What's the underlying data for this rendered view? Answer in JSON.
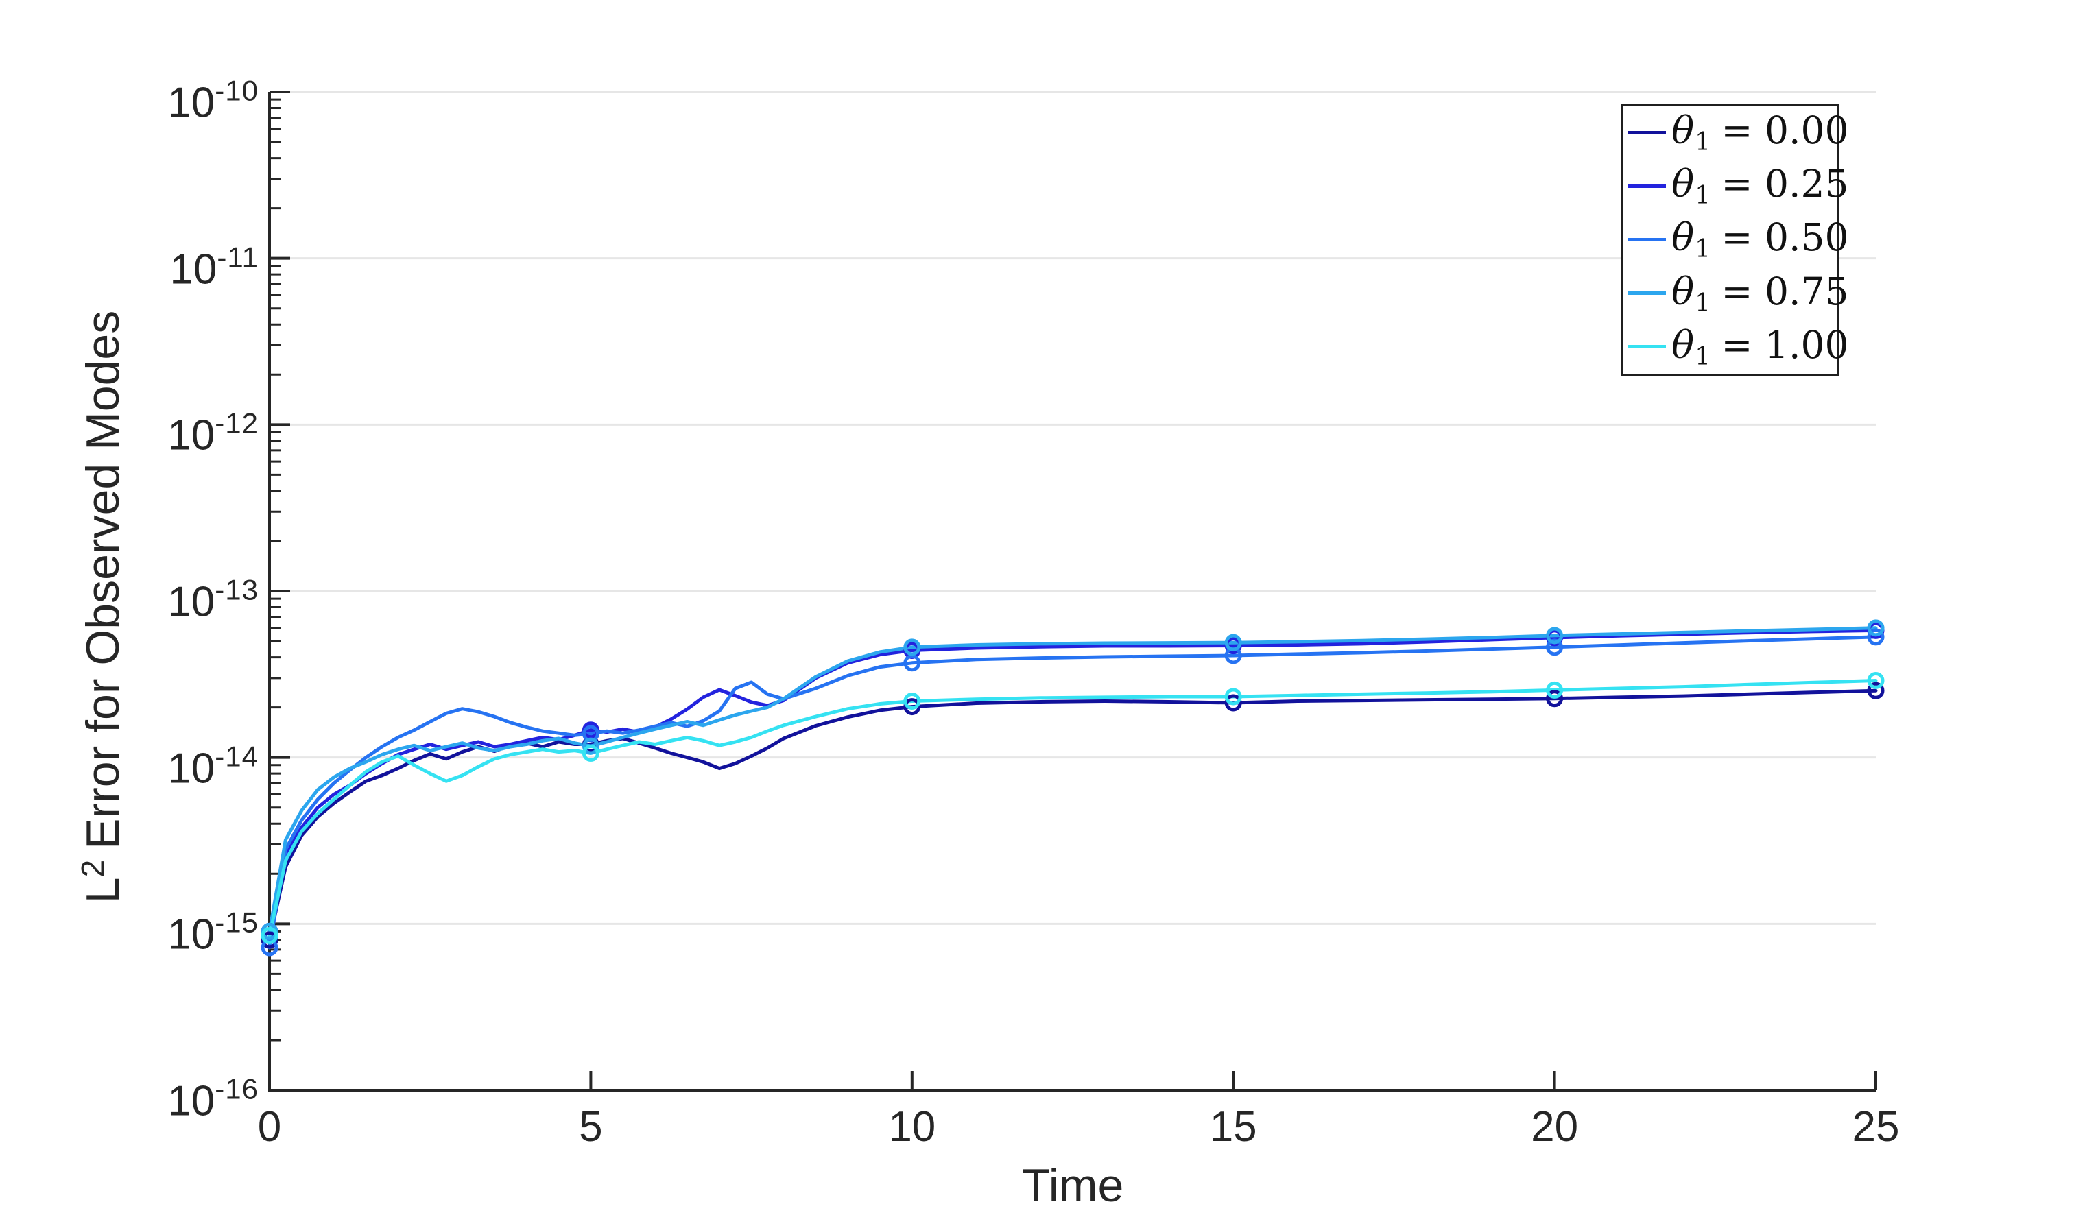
{
  "background": "#FFFFFF",
  "grid_color": "#E6E6E6",
  "axis_color": "#262626",
  "chart_data": {
    "type": "line",
    "title": "",
    "xlabel": "Time",
    "ylabel_base": "L",
    "ylabel_sup": "2",
    "ylabel_rest": "Error for Observed Modes",
    "xlim": [
      0,
      25
    ],
    "ylim": [
      1e-16,
      1e-10
    ],
    "yscale": "log",
    "x_ticks": [
      0,
      5,
      10,
      15,
      20,
      25
    ],
    "y_tick_base": "10",
    "y_tick_exponents": [
      -10,
      -11,
      -12,
      -13,
      -14,
      -15,
      -16
    ],
    "grid": "horizontal-only",
    "legend_position": "top-right-inside",
    "legend": {
      "theta": "θ",
      "sub": "1",
      "eq": "="
    },
    "marker_times": [
      0,
      5,
      10,
      15,
      20,
      25
    ],
    "marker_style": "open-circle",
    "value_unit": 1e-15,
    "series": [
      {
        "name": "theta1-0.00",
        "legend_value": "0.00",
        "color": "#12129B",
        "points": [
          [
            0,
            0.8
          ],
          [
            0.25,
            2.2
          ],
          [
            0.5,
            3.4
          ],
          [
            0.75,
            4.4
          ],
          [
            1,
            5.3
          ],
          [
            1.25,
            6.2
          ],
          [
            1.5,
            7.2
          ],
          [
            1.75,
            7.8
          ],
          [
            2,
            8.6
          ],
          [
            2.25,
            9.6
          ],
          [
            2.5,
            10.5
          ],
          [
            2.75,
            9.8
          ],
          [
            3,
            10.8
          ],
          [
            3.25,
            11.6
          ],
          [
            3.5,
            10.9
          ],
          [
            3.75,
            11.8
          ],
          [
            4,
            12.2
          ],
          [
            4.25,
            11.6
          ],
          [
            4.5,
            12.4
          ],
          [
            4.75,
            12.0
          ],
          [
            5,
            12.0
          ],
          [
            5.25,
            12.6
          ],
          [
            5.5,
            13.0
          ],
          [
            5.75,
            12.2
          ],
          [
            6,
            11.4
          ],
          [
            6.25,
            10.6
          ],
          [
            6.5,
            10.0
          ],
          [
            6.75,
            9.4
          ],
          [
            7,
            8.6
          ],
          [
            7.25,
            9.2
          ],
          [
            7.5,
            10.2
          ],
          [
            7.75,
            11.4
          ],
          [
            8,
            13.0
          ],
          [
            8.5,
            15.5
          ],
          [
            9,
            17.5
          ],
          [
            9.5,
            19.2
          ],
          [
            10,
            20.2
          ],
          [
            11,
            21.2
          ],
          [
            12,
            21.6
          ],
          [
            13,
            21.8
          ],
          [
            14,
            21.6
          ],
          [
            15,
            21.3
          ],
          [
            16,
            21.8
          ],
          [
            17,
            22.0
          ],
          [
            18,
            22.2
          ],
          [
            19,
            22.4
          ],
          [
            20,
            22.6
          ],
          [
            21,
            23.0
          ],
          [
            22,
            23.4
          ],
          [
            23,
            24.0
          ],
          [
            24,
            24.6
          ],
          [
            25,
            25.2
          ]
        ]
      },
      {
        "name": "theta1-0.25",
        "legend_value": "0.25",
        "color": "#2323DE",
        "points": [
          [
            0,
            0.9
          ],
          [
            0.25,
            2.6
          ],
          [
            0.5,
            3.8
          ],
          [
            0.75,
            5.0
          ],
          [
            1,
            6.0
          ],
          [
            1.25,
            6.8
          ],
          [
            1.5,
            8.0
          ],
          [
            1.75,
            9.2
          ],
          [
            2,
            10.4
          ],
          [
            2.25,
            11.2
          ],
          [
            2.5,
            12.0
          ],
          [
            2.75,
            11.2
          ],
          [
            3,
            11.8
          ],
          [
            3.25,
            12.4
          ],
          [
            3.5,
            11.6
          ],
          [
            3.75,
            12.0
          ],
          [
            4,
            12.6
          ],
          [
            4.25,
            13.2
          ],
          [
            4.5,
            12.8
          ],
          [
            4.75,
            13.6
          ],
          [
            5,
            14.6
          ],
          [
            5.25,
            14.2
          ],
          [
            5.5,
            14.8
          ],
          [
            5.75,
            14.2
          ],
          [
            6,
            15.2
          ],
          [
            6.25,
            17.0
          ],
          [
            6.5,
            19.5
          ],
          [
            6.75,
            23.0
          ],
          [
            7,
            25.5
          ],
          [
            7.25,
            23.5
          ],
          [
            7.5,
            21.5
          ],
          [
            7.75,
            20.5
          ],
          [
            8,
            22.0
          ],
          [
            8.5,
            30.0
          ],
          [
            9,
            37.0
          ],
          [
            9.5,
            41.5
          ],
          [
            10,
            44.0
          ],
          [
            11,
            45.5
          ],
          [
            12,
            46.3
          ],
          [
            13,
            46.8
          ],
          [
            14,
            46.8
          ],
          [
            15,
            47.0
          ],
          [
            16,
            47.5
          ],
          [
            17,
            48.2
          ],
          [
            18,
            49.5
          ],
          [
            19,
            51.0
          ],
          [
            20,
            52.5
          ],
          [
            21,
            53.8
          ],
          [
            22,
            55.0
          ],
          [
            23,
            56.2
          ],
          [
            24,
            57.2
          ],
          [
            25,
            58.0
          ]
        ]
      },
      {
        "name": "theta1-0.50",
        "legend_value": "0.50",
        "color": "#2673F2",
        "points": [
          [
            0,
            0.72
          ],
          [
            0.25,
            2.8
          ],
          [
            0.5,
            4.2
          ],
          [
            0.75,
            5.6
          ],
          [
            1,
            7.0
          ],
          [
            1.25,
            8.4
          ],
          [
            1.5,
            10.0
          ],
          [
            1.75,
            11.6
          ],
          [
            2,
            13.2
          ],
          [
            2.25,
            14.6
          ],
          [
            2.5,
            16.4
          ],
          [
            2.75,
            18.4
          ],
          [
            3,
            19.6
          ],
          [
            3.25,
            18.8
          ],
          [
            3.5,
            17.6
          ],
          [
            3.75,
            16.2
          ],
          [
            4,
            15.2
          ],
          [
            4.25,
            14.4
          ],
          [
            4.5,
            14.0
          ],
          [
            4.75,
            13.6
          ],
          [
            5,
            13.9
          ],
          [
            5.25,
            14.4
          ],
          [
            5.5,
            14.0
          ],
          [
            5.75,
            14.6
          ],
          [
            6,
            15.4
          ],
          [
            6.25,
            16.2
          ],
          [
            6.5,
            15.4
          ],
          [
            6.75,
            16.6
          ],
          [
            7,
            19.0
          ],
          [
            7.25,
            26.0
          ],
          [
            7.5,
            28.3
          ],
          [
            7.75,
            24.0
          ],
          [
            8,
            22.5
          ],
          [
            8.5,
            26.0
          ],
          [
            9,
            31.0
          ],
          [
            9.5,
            35.0
          ],
          [
            10,
            37.0
          ],
          [
            11,
            38.8
          ],
          [
            12,
            39.6
          ],
          [
            13,
            40.2
          ],
          [
            14,
            40.6
          ],
          [
            15,
            41.0
          ],
          [
            16,
            41.8
          ],
          [
            17,
            42.6
          ],
          [
            18,
            43.6
          ],
          [
            19,
            44.8
          ],
          [
            20,
            46.0
          ],
          [
            21,
            47.4
          ],
          [
            22,
            48.8
          ],
          [
            23,
            50.2
          ],
          [
            24,
            51.6
          ],
          [
            25,
            53.0
          ]
        ]
      },
      {
        "name": "theta1-0.75",
        "legend_value": "0.75",
        "color": "#2CA6EE",
        "points": [
          [
            0,
            0.9
          ],
          [
            0.25,
            3.2
          ],
          [
            0.5,
            4.8
          ],
          [
            0.75,
            6.4
          ],
          [
            1,
            7.6
          ],
          [
            1.25,
            8.6
          ],
          [
            1.5,
            9.4
          ],
          [
            1.75,
            10.4
          ],
          [
            2,
            11.2
          ],
          [
            2.25,
            11.8
          ],
          [
            2.5,
            11.0
          ],
          [
            2.75,
            11.6
          ],
          [
            3,
            12.2
          ],
          [
            3.25,
            11.4
          ],
          [
            3.5,
            11.0
          ],
          [
            3.75,
            11.6
          ],
          [
            4,
            12.0
          ],
          [
            4.25,
            12.6
          ],
          [
            4.5,
            13.0
          ],
          [
            4.75,
            12.2
          ],
          [
            5,
            11.7
          ],
          [
            5.25,
            12.4
          ],
          [
            5.5,
            13.2
          ],
          [
            5.75,
            14.0
          ],
          [
            6,
            14.8
          ],
          [
            6.25,
            15.6
          ],
          [
            6.5,
            16.4
          ],
          [
            6.75,
            15.6
          ],
          [
            7,
            16.8
          ],
          [
            7.25,
            18.0
          ],
          [
            7.5,
            19.0
          ],
          [
            7.75,
            20.0
          ],
          [
            8,
            22.5
          ],
          [
            8.5,
            30.5
          ],
          [
            9,
            38.0
          ],
          [
            9.5,
            43.0
          ],
          [
            10,
            46.0
          ],
          [
            11,
            47.5
          ],
          [
            12,
            48.2
          ],
          [
            13,
            48.6
          ],
          [
            14,
            48.8
          ],
          [
            15,
            49.0
          ],
          [
            16,
            49.6
          ],
          [
            17,
            50.4
          ],
          [
            18,
            51.4
          ],
          [
            19,
            52.6
          ],
          [
            20,
            54.0
          ],
          [
            21,
            55.2
          ],
          [
            22,
            56.4
          ],
          [
            23,
            57.6
          ],
          [
            24,
            58.8
          ],
          [
            25,
            60.0
          ]
        ]
      },
      {
        "name": "theta1-1.00",
        "legend_value": "1.00",
        "color": "#35E2F2",
        "points": [
          [
            0,
            0.85
          ],
          [
            0.25,
            2.4
          ],
          [
            0.5,
            3.6
          ],
          [
            0.75,
            4.6
          ],
          [
            1,
            5.6
          ],
          [
            1.25,
            6.8
          ],
          [
            1.5,
            8.2
          ],
          [
            1.75,
            9.4
          ],
          [
            2,
            10.2
          ],
          [
            2.25,
            9.0
          ],
          [
            2.5,
            8.0
          ],
          [
            2.75,
            7.2
          ],
          [
            3,
            7.8
          ],
          [
            3.25,
            8.8
          ],
          [
            3.5,
            9.8
          ],
          [
            3.75,
            10.4
          ],
          [
            4,
            10.8
          ],
          [
            4.25,
            11.2
          ],
          [
            4.5,
            10.8
          ],
          [
            4.75,
            11.0
          ],
          [
            5,
            10.6
          ],
          [
            5.25,
            11.2
          ],
          [
            5.5,
            11.8
          ],
          [
            5.75,
            12.4
          ],
          [
            6,
            12.0
          ],
          [
            6.25,
            12.6
          ],
          [
            6.5,
            13.2
          ],
          [
            6.75,
            12.6
          ],
          [
            7,
            11.8
          ],
          [
            7.25,
            12.4
          ],
          [
            7.5,
            13.2
          ],
          [
            7.75,
            14.4
          ],
          [
            8,
            15.6
          ],
          [
            8.5,
            17.6
          ],
          [
            9,
            19.6
          ],
          [
            9.5,
            21.0
          ],
          [
            10,
            21.8
          ],
          [
            11,
            22.4
          ],
          [
            12,
            22.8
          ],
          [
            13,
            23.0
          ],
          [
            14,
            23.2
          ],
          [
            15,
            23.2
          ],
          [
            16,
            23.6
          ],
          [
            17,
            24.0
          ],
          [
            18,
            24.4
          ],
          [
            19,
            24.8
          ],
          [
            20,
            25.4
          ],
          [
            21,
            26.0
          ],
          [
            22,
            26.6
          ],
          [
            23,
            27.4
          ],
          [
            24,
            28.2
          ],
          [
            25,
            29.0
          ]
        ]
      }
    ]
  }
}
